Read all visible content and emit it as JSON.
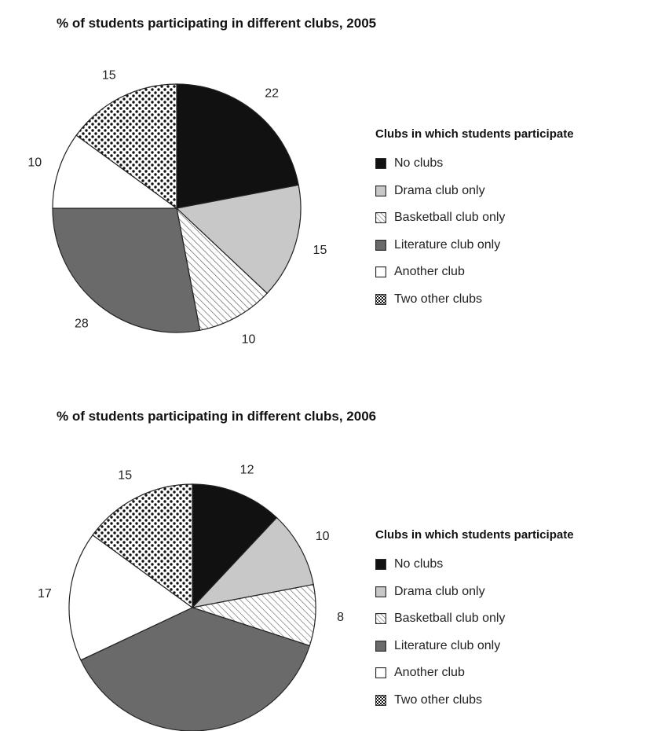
{
  "colors": {
    "no_clubs": "#111111",
    "drama": "#c8c8c8",
    "basketball_hatch": "#555555",
    "literature": "#6a6a6a",
    "another": "#ffffff",
    "two_other_dots": "#111111",
    "outline": "#222222"
  },
  "legend": {
    "title": "Clubs in which students participate",
    "items": [
      {
        "label": "No clubs",
        "pattern": "no_clubs"
      },
      {
        "label": "Drama club only",
        "pattern": "drama"
      },
      {
        "label": "Basketball club only",
        "pattern": "basketball"
      },
      {
        "label": "Literature club only",
        "pattern": "literature"
      },
      {
        "label": "Another club",
        "pattern": "another"
      },
      {
        "label": "Two other clubs",
        "pattern": "two_other"
      }
    ]
  },
  "chart_data": [
    {
      "type": "pie",
      "title": "% of students participating in different clubs, 2005",
      "categories": [
        "No clubs",
        "Drama club only",
        "Basketball club only",
        "Literature club only",
        "Another club",
        "Two other clubs"
      ],
      "values": [
        22,
        15,
        10,
        28,
        10,
        15
      ],
      "data_labels": [
        "22",
        "15",
        "10",
        "28",
        "10",
        "15"
      ],
      "start_angle": "12 o'clock",
      "direction": "clockwise",
      "legend_placement": "right"
    },
    {
      "type": "pie",
      "title": "% of students participating in different clubs, 2006",
      "categories": [
        "No clubs",
        "Drama club only",
        "Basketball club only",
        "Literature club only",
        "Another club",
        "Two other clubs"
      ],
      "values": [
        12,
        10,
        8,
        38,
        17,
        15
      ],
      "data_labels": [
        "12",
        "10",
        "8",
        "",
        "17",
        "15"
      ],
      "start_angle": "12 o'clock",
      "direction": "clockwise",
      "legend_placement": "right"
    }
  ]
}
